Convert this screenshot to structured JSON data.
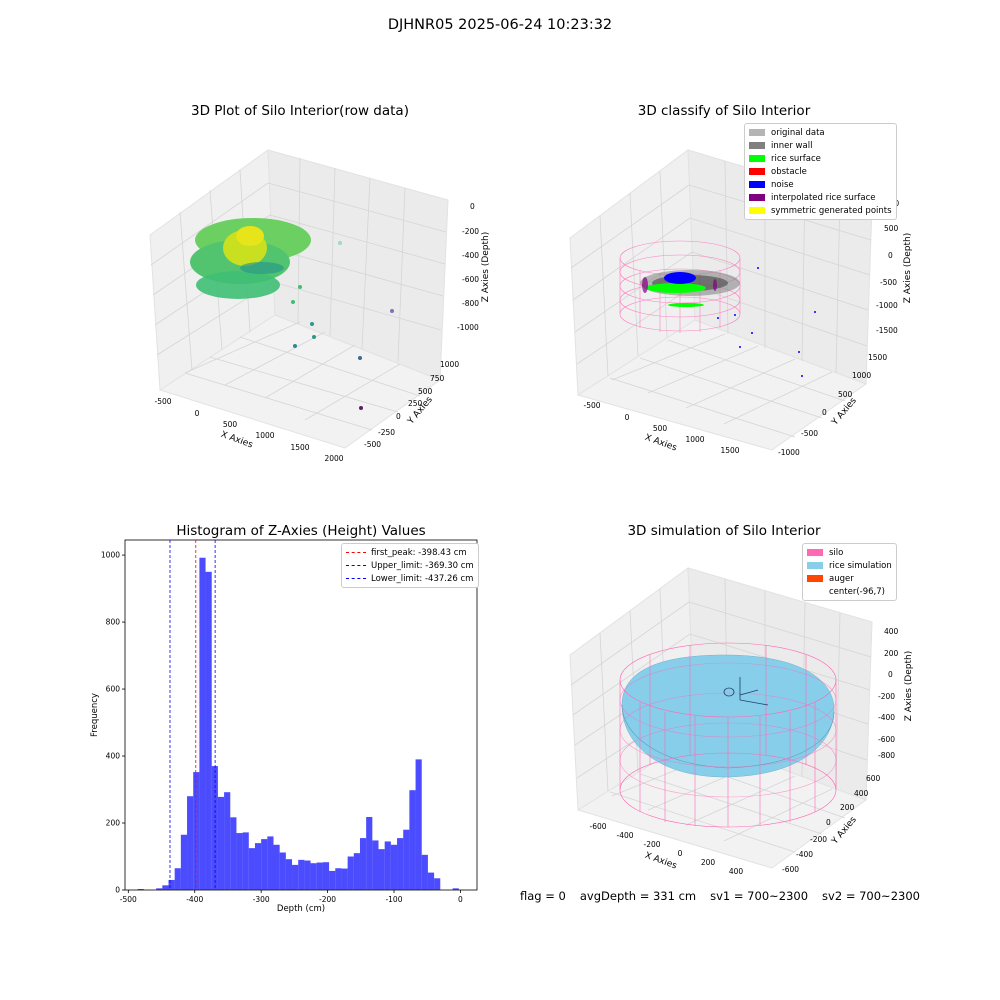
{
  "suptitle": "DJHNR05 2025-06-24 10:23:32",
  "footer": {
    "flag": "flag = 0",
    "avg_depth": "avgDepth = 331 cm",
    "sv1": "sv1 = 700~2300",
    "sv2": "sv2 = 700~2300"
  },
  "plot1": {
    "title": "3D Plot of Silo Interior(row data)",
    "xlabel": "X Axies",
    "ylabel": "Y Axies",
    "zlabel": "Z Axies (Depth)",
    "x_ticks": [
      "-500",
      "0",
      "500",
      "1000",
      "1500",
      "2000"
    ],
    "y_ticks": [
      "-500",
      "-250",
      "0",
      "250",
      "500",
      "750",
      "1000"
    ],
    "z_ticks": [
      "0",
      "-200",
      "-400",
      "-600",
      "-800",
      "-1000"
    ]
  },
  "plot2": {
    "title": "3D classify of Silo Interior",
    "xlabel": "X Axies",
    "ylabel": "Y Axies",
    "zlabel": "Z Axies (Depth)",
    "x_ticks": [
      "-500",
      "0",
      "500",
      "1000",
      "1500"
    ],
    "y_ticks": [
      "-1000",
      "-500",
      "0",
      "500",
      "1000",
      "1500"
    ],
    "z_ticks": [
      "1000",
      "500",
      "0",
      "-500",
      "-1000",
      "-1500"
    ],
    "legend": [
      {
        "label": "original data",
        "color": "#b4b4b4"
      },
      {
        "label": "inner wall",
        "color": "#808080"
      },
      {
        "label": "rice surface",
        "color": "#00ff00"
      },
      {
        "label": "obstacle",
        "color": "#ff0000"
      },
      {
        "label": "noise",
        "color": "#0000ff"
      },
      {
        "label": "interpolated rice surface",
        "color": "#800080"
      },
      {
        "label": "symmetric generated points",
        "color": "#ffff00"
      }
    ]
  },
  "plot4": {
    "title": "3D simulation of Silo Interior",
    "xlabel": "X Axies",
    "ylabel": "Y Axies",
    "zlabel": "Z Axies (Depth)",
    "x_ticks": [
      "-600",
      "-400",
      "-200",
      "0",
      "200",
      "400"
    ],
    "y_ticks": [
      "-600",
      "-400",
      "-200",
      "0",
      "200",
      "400",
      "600"
    ],
    "z_ticks": [
      "400",
      "200",
      "0",
      "-200",
      "-400",
      "-600",
      "-800"
    ],
    "legend": [
      {
        "label": "silo",
        "color": "#ff69b4"
      },
      {
        "label": "rice simulation",
        "color": "#87ceeb"
      },
      {
        "label": "auger",
        "color": "#ff4500"
      },
      {
        "label": "center(-96,7)",
        "color": ""
      }
    ]
  },
  "chart_data": {
    "type": "bar",
    "title": "Histogram of Z-Axies (Height) Values",
    "xlabel": "Depth (cm)",
    "ylabel": "Frequency",
    "xlim": [
      -505,
      25
    ],
    "ylim": [
      0,
      1045
    ],
    "x_ticks": [
      -500,
      -400,
      -300,
      -200,
      -100,
      0
    ],
    "y_ticks": [
      0,
      200,
      400,
      600,
      800,
      1000
    ],
    "bar_color": "#0000ff",
    "bin_width": 9.3,
    "bins": [
      {
        "x": -486.0,
        "count": 3
      },
      {
        "x": -458.1,
        "count": 5
      },
      {
        "x": -448.8,
        "count": 14
      },
      {
        "x": -439.5,
        "count": 30
      },
      {
        "x": -430.2,
        "count": 65
      },
      {
        "x": -420.9,
        "count": 165
      },
      {
        "x": -411.6,
        "count": 280
      },
      {
        "x": -402.3,
        "count": 352
      },
      {
        "x": -393.0,
        "count": 992
      },
      {
        "x": -383.7,
        "count": 950
      },
      {
        "x": -374.4,
        "count": 370
      },
      {
        "x": -365.1,
        "count": 278
      },
      {
        "x": -355.8,
        "count": 292
      },
      {
        "x": -346.5,
        "count": 217
      },
      {
        "x": -337.2,
        "count": 170
      },
      {
        "x": -327.9,
        "count": 172
      },
      {
        "x": -318.6,
        "count": 125
      },
      {
        "x": -309.3,
        "count": 140
      },
      {
        "x": -300.0,
        "count": 152
      },
      {
        "x": -290.7,
        "count": 160
      },
      {
        "x": -281.4,
        "count": 135
      },
      {
        "x": -272.1,
        "count": 112
      },
      {
        "x": -262.8,
        "count": 92
      },
      {
        "x": -253.5,
        "count": 75
      },
      {
        "x": -244.2,
        "count": 90
      },
      {
        "x": -234.9,
        "count": 88
      },
      {
        "x": -225.6,
        "count": 80
      },
      {
        "x": -216.3,
        "count": 82
      },
      {
        "x": -207.0,
        "count": 83
      },
      {
        "x": -197.7,
        "count": 57
      },
      {
        "x": -188.4,
        "count": 65
      },
      {
        "x": -179.1,
        "count": 64
      },
      {
        "x": -169.8,
        "count": 100
      },
      {
        "x": -160.5,
        "count": 110
      },
      {
        "x": -151.2,
        "count": 155
      },
      {
        "x": -141.9,
        "count": 218
      },
      {
        "x": -132.6,
        "count": 148
      },
      {
        "x": -123.3,
        "count": 122
      },
      {
        "x": -114.0,
        "count": 145
      },
      {
        "x": -104.7,
        "count": 135
      },
      {
        "x": -95.4,
        "count": 155
      },
      {
        "x": -86.1,
        "count": 180
      },
      {
        "x": -76.8,
        "count": 298
      },
      {
        "x": -67.5,
        "count": 390
      },
      {
        "x": -58.2,
        "count": 105
      },
      {
        "x": -48.9,
        "count": 52
      },
      {
        "x": -39.6,
        "count": 35
      },
      {
        "x": -11.7,
        "count": 5
      }
    ],
    "vlines": [
      {
        "label": "first_peak: -398.43 cm",
        "x": -398.43,
        "color": "#ff0000"
      },
      {
        "label": "Upper_limit: -369.30 cm",
        "x": -369.3,
        "color": "#0000ff"
      },
      {
        "label": "Lower_limit: -437.26 cm",
        "x": -437.26,
        "color": "#0000ff"
      }
    ]
  }
}
